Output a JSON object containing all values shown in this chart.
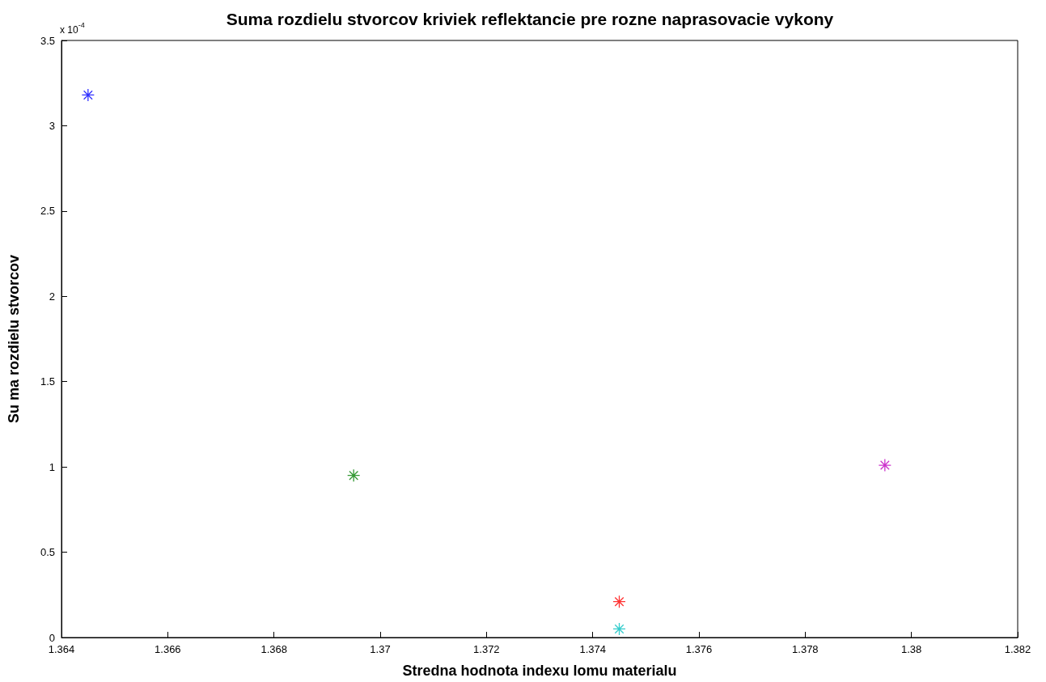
{
  "chart_data": {
    "type": "scatter",
    "title": "Suma rozdielu stvorcov kriviek reflektancie pre rozne naprasovacie vykony",
    "xlabel": "Stredna hodnota indexu lomu materialu",
    "ylabel": "Su ma rozdielu stvorcov",
    "annotations": [
      "x 10$^{-4}$"
    ],
    "series": [
      {
        "color": "#0000ff",
        "x": [
          1.3645
        ],
        "values": [
          3.18
        ]
      },
      {
        "color": "#008000",
        "x": [
          1.3695
        ],
        "values": [
          0.95
        ]
      },
      {
        "color": "#ff0000",
        "x": [
          1.3745
        ],
        "values": [
          0.21
        ]
      },
      {
        "color": "#00bfbf",
        "x": [
          1.3745
        ],
        "values": [
          0.05
        ]
      },
      {
        "color": "#bf00bf",
        "x": [
          1.3795
        ],
        "values": [
          1.01
        ]
      }
    ],
    "marker": "cross",
    "xlim": [
      1.364,
      1.382
    ],
    "xticks": [
      1.364,
      1.366,
      1.368,
      1.37,
      1.372,
      1.374,
      1.376,
      1.378,
      1.38,
      1.382
    ],
    "ylim": [
      0,
      3.5
    ],
    "yticks": [
      0,
      0.5,
      1,
      1.5,
      2,
      2.5,
      3,
      3.5
    ],
    "grid": false
  }
}
